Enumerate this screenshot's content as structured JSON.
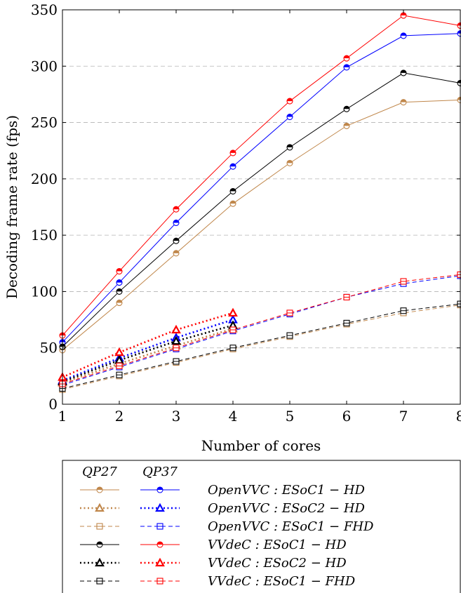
{
  "chart_data": {
    "type": "line",
    "xlabel": "Number of cores",
    "ylabel": "Decoding frame rate (fps)",
    "xlim": [
      1,
      8
    ],
    "ylim": [
      0,
      350
    ],
    "xticks": [
      "1",
      "2",
      "3",
      "4",
      "5",
      "6",
      "7",
      "8"
    ],
    "yticks": [
      "0",
      "50",
      "100",
      "150",
      "200",
      "250",
      "300",
      "350"
    ],
    "grid": "horizontal dashed",
    "legend": {
      "placement": "bottom",
      "column_headers": [
        "QP27",
        "QP37"
      ],
      "rows": [
        "OpenVVC : ESoC1 − HD",
        "OpenVVC : ESoC2 − HD",
        "OpenVVC : ESoC1 − FHD",
        "VVdeC : ESoC1 − HD",
        "VVdeC : ESoC2 − HD",
        "VVdeC : ESoC1 − FHD"
      ]
    },
    "series": [
      {
        "name": "OpenVVC : ESoC1 − HD (QP27)",
        "color": "#c0874b",
        "style": "solid",
        "marker": "circle",
        "x": [
          1,
          2,
          3,
          4,
          5,
          6,
          7,
          8
        ],
        "y": [
          48,
          90,
          134,
          178,
          214,
          247,
          268,
          270
        ]
      },
      {
        "name": "OpenVVC : ESoC1 − HD (QP37)",
        "color": "#0000ff",
        "style": "solid",
        "marker": "circle",
        "x": [
          1,
          2,
          3,
          4,
          5,
          6,
          7,
          8
        ],
        "y": [
          55,
          108,
          161,
          211,
          255,
          299,
          327,
          329
        ]
      },
      {
        "name": "VVdeC : ESoC1 − HD (QP27)",
        "color": "#000000",
        "style": "solid",
        "marker": "circle",
        "x": [
          1,
          2,
          3,
          4,
          5,
          6,
          7,
          8
        ],
        "y": [
          51,
          100,
          145,
          189,
          228,
          262,
          294,
          285
        ]
      },
      {
        "name": "VVdeC : ESoC1 − HD (QP37)",
        "color": "#ff0000",
        "style": "solid",
        "marker": "circle",
        "x": [
          1,
          2,
          3,
          4,
          5,
          6,
          7,
          8
        ],
        "y": [
          61,
          118,
          173,
          223,
          269,
          307,
          345,
          336
        ]
      },
      {
        "name": "OpenVVC : ESoC2 − HD (QP27)",
        "color": "#c0874b",
        "style": "dotted",
        "marker": "triangle",
        "x": [
          1,
          2,
          3,
          4
        ],
        "y": [
          19,
          36,
          52,
          67
        ]
      },
      {
        "name": "OpenVVC : ESoC2 − HD (QP37)",
        "color": "#0000ff",
        "style": "dotted",
        "marker": "triangle",
        "x": [
          1,
          2,
          3,
          4
        ],
        "y": [
          21,
          41,
          59,
          75
        ]
      },
      {
        "name": "VVdeC : ESoC2 − HD (QP27)",
        "color": "#000000",
        "style": "dotted",
        "marker": "triangle",
        "x": [
          1,
          2,
          3,
          4
        ],
        "y": [
          20,
          39,
          56,
          70
        ]
      },
      {
        "name": "VVdeC : ESoC2 − HD (QP37)",
        "color": "#ff0000",
        "style": "dotted",
        "marker": "triangle",
        "x": [
          1,
          2,
          3,
          4
        ],
        "y": [
          24,
          46,
          66,
          81
        ]
      },
      {
        "name": "OpenVVC : ESoC1 − FHD (QP27)",
        "color": "#c0874b",
        "style": "dashed",
        "marker": "square",
        "x": [
          1,
          2,
          3,
          4,
          5,
          6,
          7,
          8
        ],
        "y": [
          13,
          25,
          37,
          49,
          60,
          71,
          81,
          88
        ]
      },
      {
        "name": "OpenVVC : ESoC1 − FHD (QP37)",
        "color": "#0000ff",
        "style": "dashed",
        "marker": "square",
        "x": [
          1,
          2,
          3,
          4,
          5,
          6,
          7,
          8
        ],
        "y": [
          17,
          33,
          49,
          65,
          80,
          95,
          107,
          114
        ]
      },
      {
        "name": "VVdeC : ESoC1 − FHD (QP27)",
        "color": "#000000",
        "style": "dashed",
        "marker": "square",
        "x": [
          1,
          2,
          3,
          4,
          5,
          6,
          7,
          8
        ],
        "y": [
          14,
          26,
          38,
          50,
          61,
          72,
          83,
          89
        ]
      },
      {
        "name": "VVdeC : ESoC1 − FHD (QP37)",
        "color": "#ff0000",
        "style": "dashed",
        "marker": "square",
        "x": [
          1,
          2,
          3,
          4,
          5,
          6,
          7,
          8
        ],
        "y": [
          18,
          34,
          50,
          66,
          81,
          95,
          109,
          115
        ]
      }
    ],
    "legend_row_series": [
      [
        0,
        1
      ],
      [
        4,
        5
      ],
      [
        8,
        9
      ],
      [
        2,
        3
      ],
      [
        6,
        7
      ],
      [
        10,
        11
      ]
    ]
  }
}
